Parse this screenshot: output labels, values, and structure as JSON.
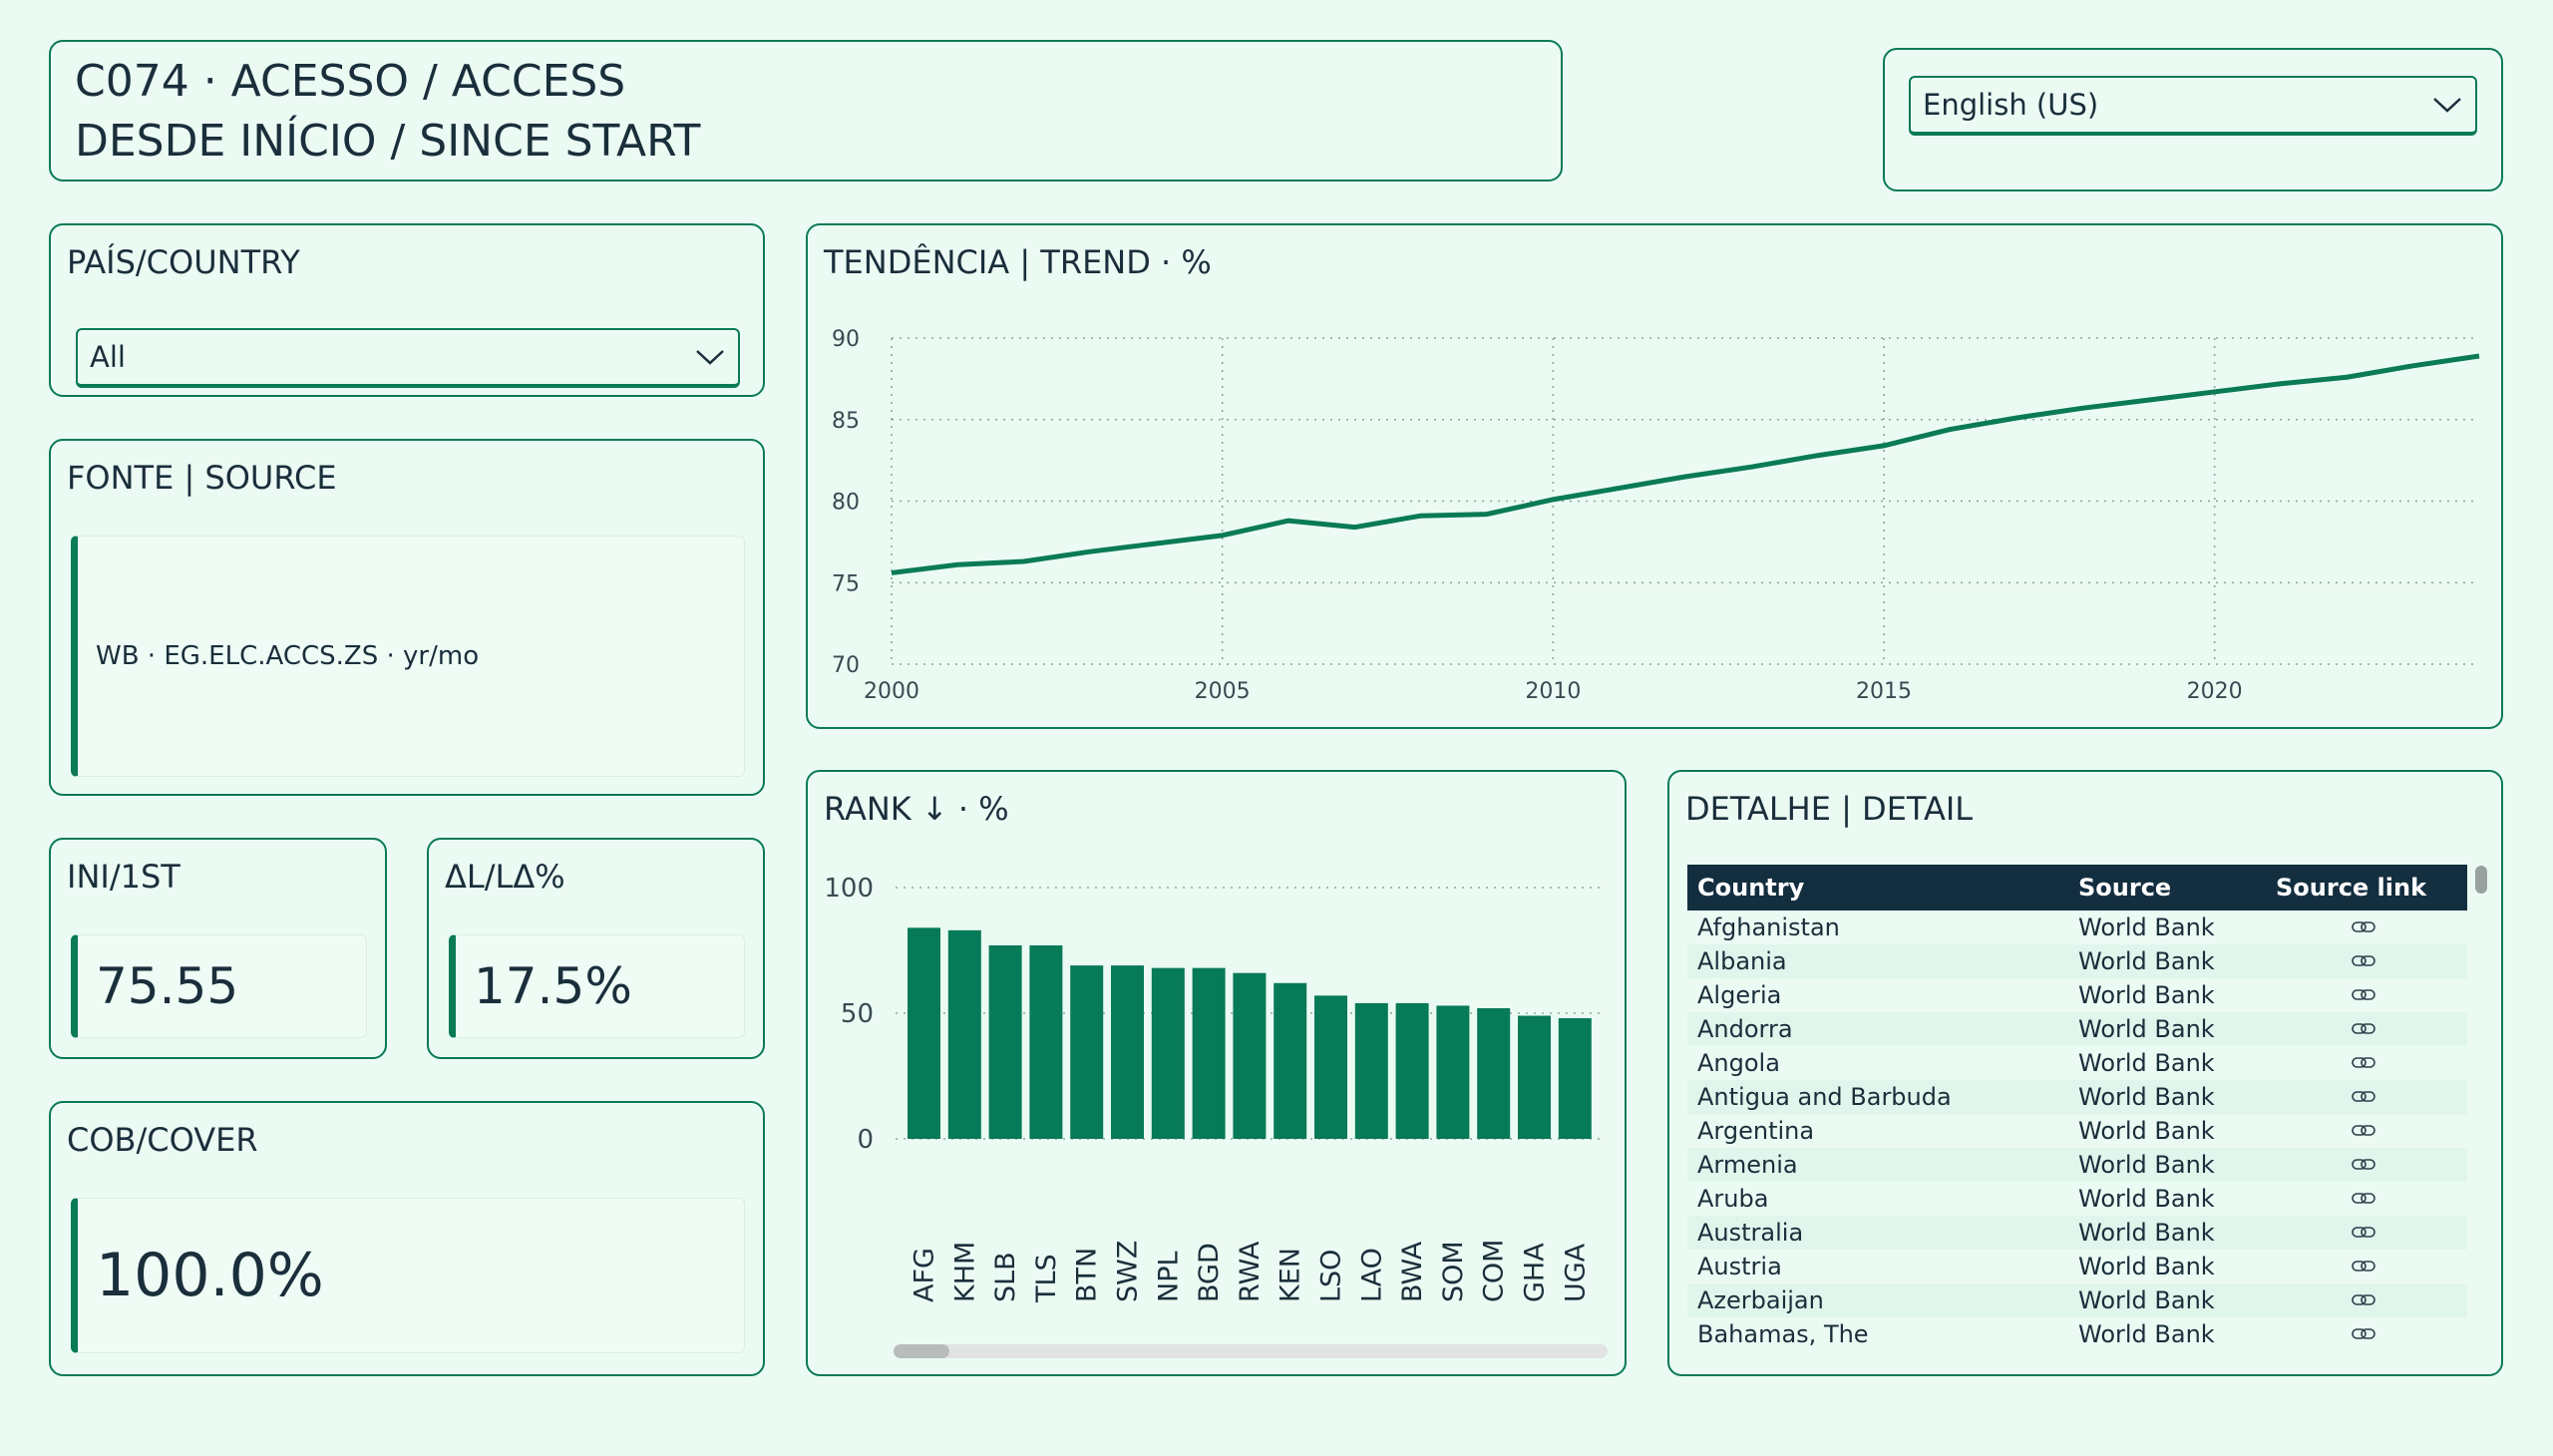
{
  "header": {
    "line1": "C074 · ACESSO / ACCESS",
    "line2": "DESDE INÍCIO / SINCE START"
  },
  "language_select": {
    "value": "English (US)",
    "icon": "chevron-down-icon"
  },
  "country_filter": {
    "title": "PAÍS/COUNTRY",
    "value": "All",
    "icon": "chevron-down-icon"
  },
  "source_card": {
    "title": "FONTE | SOURCE",
    "text": "WB · EG.ELC.ACCS.ZS · yr/mo"
  },
  "kpi_first": {
    "title": "INI/1ST",
    "value": "75.55"
  },
  "kpi_delta": {
    "title": "ΔL/LΔ%",
    "value": "17.5%"
  },
  "kpi_cover": {
    "title": "COB/COVER",
    "value": "100.0%"
  },
  "trend": {
    "title": "TENDÊNCIA | TREND · %",
    "chart_data": {
      "type": "line",
      "title": "TENDÊNCIA | TREND · %",
      "xlabel": "",
      "ylabel": "",
      "ylim": [
        70,
        90
      ],
      "xlim": [
        2000,
        2024
      ],
      "y_ticks": [
        70,
        75,
        80,
        85,
        90
      ],
      "x_ticks": [
        2000,
        2005,
        2010,
        2015,
        2020
      ],
      "grid": true,
      "color": "#0a7a57",
      "x": [
        2000,
        2001,
        2002,
        2003,
        2004,
        2005,
        2006,
        2007,
        2008,
        2009,
        2010,
        2011,
        2012,
        2013,
        2014,
        2015,
        2016,
        2017,
        2018,
        2019,
        2020,
        2021,
        2022,
        2023,
        2024
      ],
      "y": [
        75.6,
        76.1,
        76.3,
        76.9,
        77.4,
        77.9,
        78.8,
        78.4,
        79.1,
        79.2,
        80.1,
        80.8,
        81.5,
        82.1,
        82.8,
        83.4,
        84.4,
        85.1,
        85.7,
        86.2,
        86.7,
        87.2,
        87.6,
        88.3,
        88.9
      ]
    }
  },
  "rank": {
    "title": "RANK ↓ · %",
    "chart_data": {
      "type": "bar",
      "title": "RANK ↓ · %",
      "xlabel": "",
      "ylabel": "",
      "ylim": [
        0,
        100
      ],
      "y_ticks": [
        0,
        50,
        100
      ],
      "grid": true,
      "color": "#077a57",
      "categories": [
        "AFG",
        "KHM",
        "SLB",
        "TLS",
        "BTN",
        "SWZ",
        "NPL",
        "BGD",
        "RWA",
        "KEN",
        "LSO",
        "LAO",
        "BWA",
        "SOM",
        "COM",
        "GHA",
        "UGA"
      ],
      "values": [
        84,
        83,
        77,
        77,
        69,
        69,
        68,
        68,
        66,
        62,
        57,
        54,
        54,
        53,
        52,
        49,
        48
      ]
    }
  },
  "detail": {
    "title": "DETALHE | DETAIL",
    "columns": [
      "Country",
      "Source",
      "Source link"
    ],
    "rows": [
      [
        "Afghanistan",
        "World Bank"
      ],
      [
        "Albania",
        "World Bank"
      ],
      [
        "Algeria",
        "World Bank"
      ],
      [
        "Andorra",
        "World Bank"
      ],
      [
        "Angola",
        "World Bank"
      ],
      [
        "Antigua and Barbuda",
        "World Bank"
      ],
      [
        "Argentina",
        "World Bank"
      ],
      [
        "Armenia",
        "World Bank"
      ],
      [
        "Aruba",
        "World Bank"
      ],
      [
        "Australia",
        "World Bank"
      ],
      [
        "Austria",
        "World Bank"
      ],
      [
        "Azerbaijan",
        "World Bank"
      ],
      [
        "Bahamas, The",
        "World Bank"
      ]
    ],
    "link_icon": "link-icon"
  }
}
